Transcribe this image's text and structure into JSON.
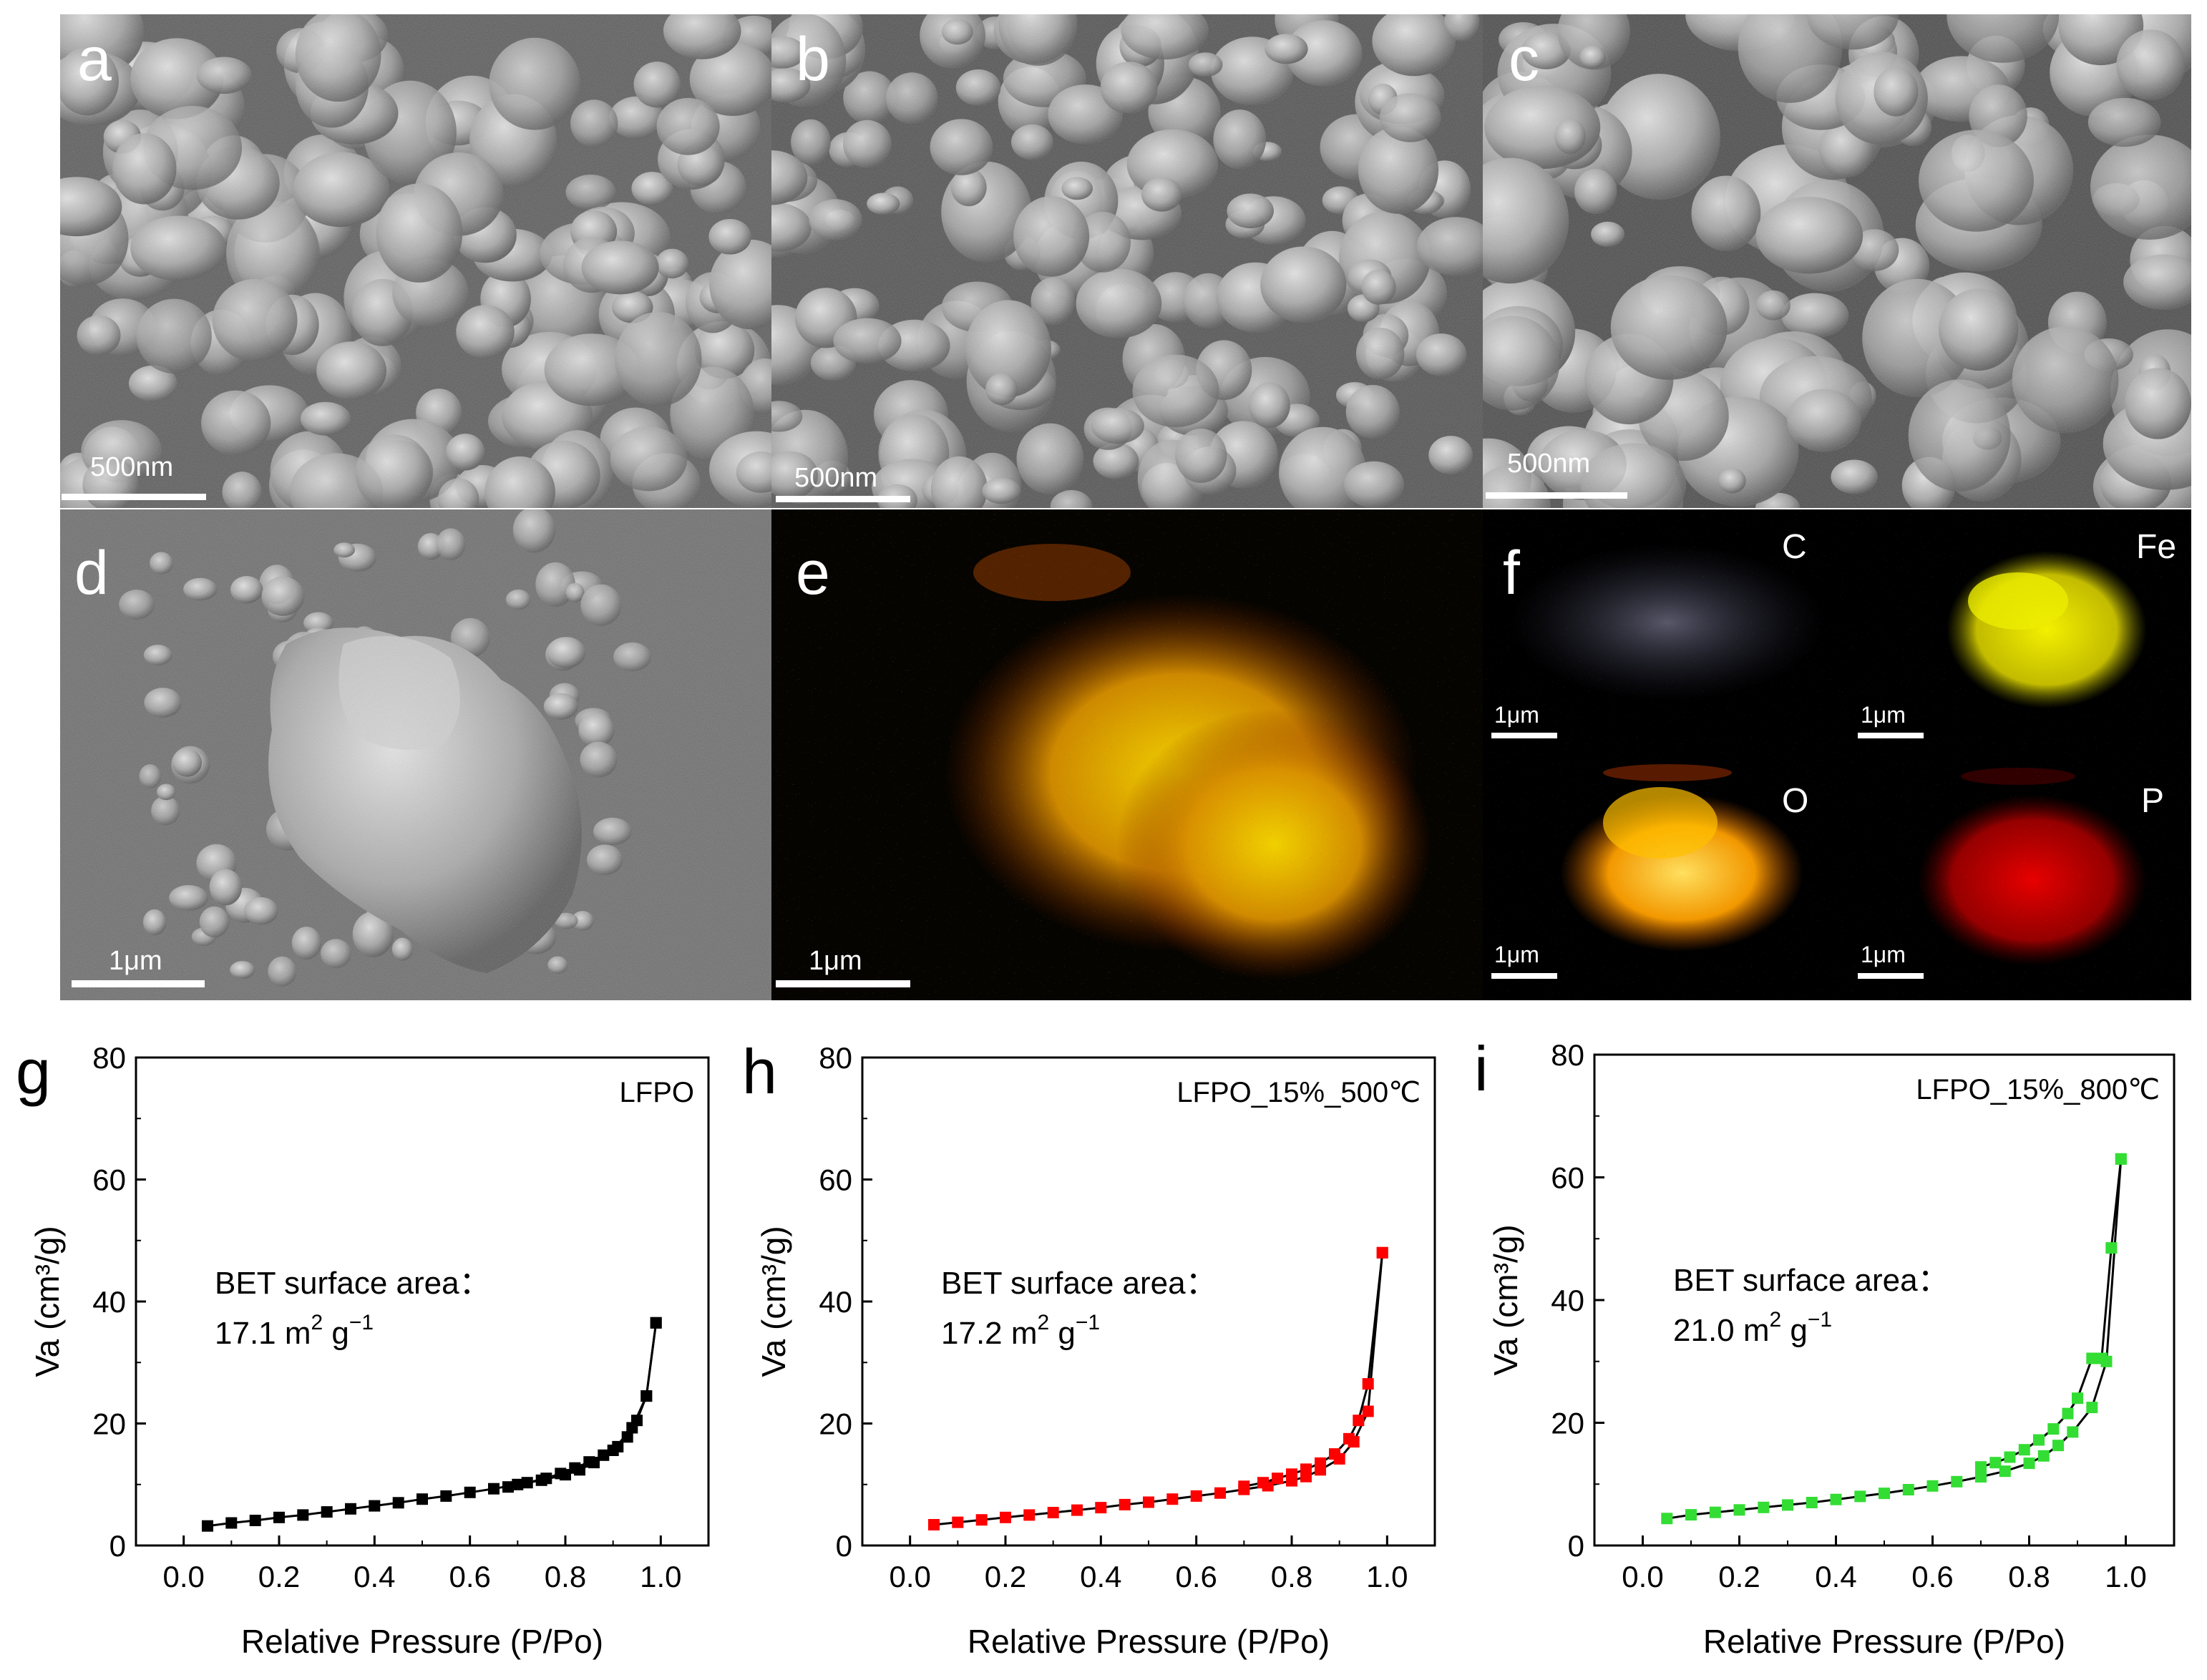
{
  "sem_panels": [
    {
      "letter": "a",
      "scale_bar": "500nm"
    },
    {
      "letter": "b",
      "scale_bar": "500nm"
    },
    {
      "letter": "c",
      "scale_bar": "500nm"
    },
    {
      "letter": "d",
      "scale_bar": "1μm"
    },
    {
      "letter": "e",
      "scale_bar": "1μm"
    }
  ],
  "eds_panel": {
    "letter": "f",
    "maps": [
      {
        "element": "C",
        "scale_bar": "1μm",
        "color": "#c8c8e6"
      },
      {
        "element": "Fe",
        "scale_bar": "1μm",
        "color": "#f2f000"
      },
      {
        "element": "O",
        "scale_bar": "1μm",
        "color": "#ffb000"
      },
      {
        "element": "P",
        "scale_bar": "1μm",
        "color": "#e00000"
      }
    ]
  },
  "chart_data": [
    {
      "type": "scatter",
      "letter": "g",
      "legend": "LFPO",
      "annotation_line1": "BET surface area：",
      "annotation_value": "17.1 m",
      "annotation_sup1": "2",
      "annotation_unit": " g",
      "annotation_sup2": "−1",
      "xlabel": "Relative Pressure (P/Po)",
      "ylabel": "Va (cm³/g)",
      "xlim": [
        -0.1,
        1.1
      ],
      "ylim": [
        0,
        80
      ],
      "xticks": [
        "0.0",
        "0.2",
        "0.4",
        "0.6",
        "0.8",
        "1.0"
      ],
      "yticks": [
        "0",
        "20",
        "40",
        "60",
        "80"
      ],
      "color": "#000000",
      "series": [
        {
          "x": [
            0.05,
            0.1,
            0.15,
            0.2,
            0.25,
            0.3,
            0.35,
            0.4,
            0.45,
            0.5,
            0.55,
            0.6,
            0.65,
            0.7,
            0.75,
            0.8,
            0.83,
            0.86,
            0.9,
            0.94,
            0.97,
            0.99
          ],
          "y": [
            3.2,
            3.7,
            4.1,
            4.6,
            5.0,
            5.5,
            6.0,
            6.5,
            7.0,
            7.6,
            8.1,
            8.7,
            9.3,
            10.0,
            10.7,
            11.6,
            12.4,
            13.6,
            15.6,
            19.3,
            24.5,
            36.5
          ]
        },
        {
          "x": [
            0.99,
            0.97,
            0.95,
            0.93,
            0.91,
            0.88,
            0.85,
            0.82,
            0.79,
            0.76,
            0.72,
            0.68
          ],
          "y": [
            36.5,
            24.5,
            20.5,
            17.8,
            16.2,
            14.8,
            13.7,
            12.7,
            11.8,
            11.0,
            10.3,
            9.6
          ]
        }
      ]
    },
    {
      "type": "scatter",
      "letter": "h",
      "legend": "LFPO_15%_500℃",
      "annotation_line1": "BET surface area：",
      "annotation_value": "17.2 m",
      "annotation_sup1": "2",
      "annotation_unit": " g",
      "annotation_sup2": "−1",
      "xlabel": "Relative Pressure (P/Po)",
      "ylabel": "Va (cm³/g)",
      "xlim": [
        -0.1,
        1.1
      ],
      "ylim": [
        0,
        80
      ],
      "xticks": [
        "0.0",
        "0.2",
        "0.4",
        "0.6",
        "0.8",
        "1.0"
      ],
      "yticks": [
        "0",
        "20",
        "40",
        "60",
        "80"
      ],
      "color": "#ff0000",
      "series": [
        {
          "x": [
            0.05,
            0.1,
            0.15,
            0.2,
            0.25,
            0.3,
            0.35,
            0.4,
            0.45,
            0.5,
            0.55,
            0.6,
            0.65,
            0.7,
            0.75,
            0.8,
            0.83,
            0.86,
            0.9,
            0.93,
            0.96,
            0.99
          ],
          "y": [
            3.4,
            3.8,
            4.2,
            4.6,
            5.0,
            5.4,
            5.8,
            6.2,
            6.7,
            7.1,
            7.6,
            8.1,
            8.6,
            9.2,
            9.8,
            10.6,
            11.3,
            12.4,
            14.2,
            17.0,
            22.0,
            48.0
          ]
        },
        {
          "x": [
            0.99,
            0.96,
            0.94,
            0.92,
            0.89,
            0.86,
            0.83,
            0.8,
            0.77,
            0.74,
            0.7
          ],
          "y": [
            48.0,
            26.5,
            20.5,
            17.5,
            15.0,
            13.5,
            12.5,
            11.7,
            11.0,
            10.3,
            9.7
          ]
        }
      ]
    },
    {
      "type": "scatter",
      "letter": "i",
      "legend": "LFPO_15%_800℃",
      "annotation_line1": "BET surface area：",
      "annotation_value": "21.0 m",
      "annotation_sup1": "2",
      "annotation_unit": " g",
      "annotation_sup2": "−1",
      "xlabel": "Relative Pressure (P/Po)",
      "ylabel": "Va (cm³/g)",
      "xlim": [
        -0.1,
        1.1
      ],
      "ylim": [
        0,
        80
      ],
      "xticks": [
        "0.0",
        "0.2",
        "0.4",
        "0.6",
        "0.8",
        "1.0"
      ],
      "yticks": [
        "0",
        "20",
        "40",
        "60",
        "80"
      ],
      "color": "#33dd33",
      "series": [
        {
          "x": [
            0.05,
            0.1,
            0.15,
            0.2,
            0.25,
            0.3,
            0.35,
            0.4,
            0.45,
            0.5,
            0.55,
            0.6,
            0.65,
            0.7,
            0.75,
            0.8,
            0.83,
            0.86,
            0.89,
            0.93,
            0.96,
            0.99
          ],
          "y": [
            4.4,
            5.0,
            5.4,
            5.8,
            6.2,
            6.6,
            7.0,
            7.5,
            8.0,
            8.5,
            9.1,
            9.7,
            10.4,
            11.2,
            12.1,
            13.4,
            14.6,
            16.3,
            18.5,
            22.5,
            30.0,
            63.0
          ]
        },
        {
          "x": [
            0.99,
            0.97,
            0.95,
            0.93,
            0.9,
            0.88,
            0.85,
            0.82,
            0.79,
            0.76,
            0.73,
            0.7
          ],
          "y": [
            63.0,
            48.5,
            30.5,
            30.5,
            24.0,
            21.5,
            19.0,
            17.2,
            15.6,
            14.4,
            13.5,
            12.8
          ]
        }
      ]
    }
  ]
}
